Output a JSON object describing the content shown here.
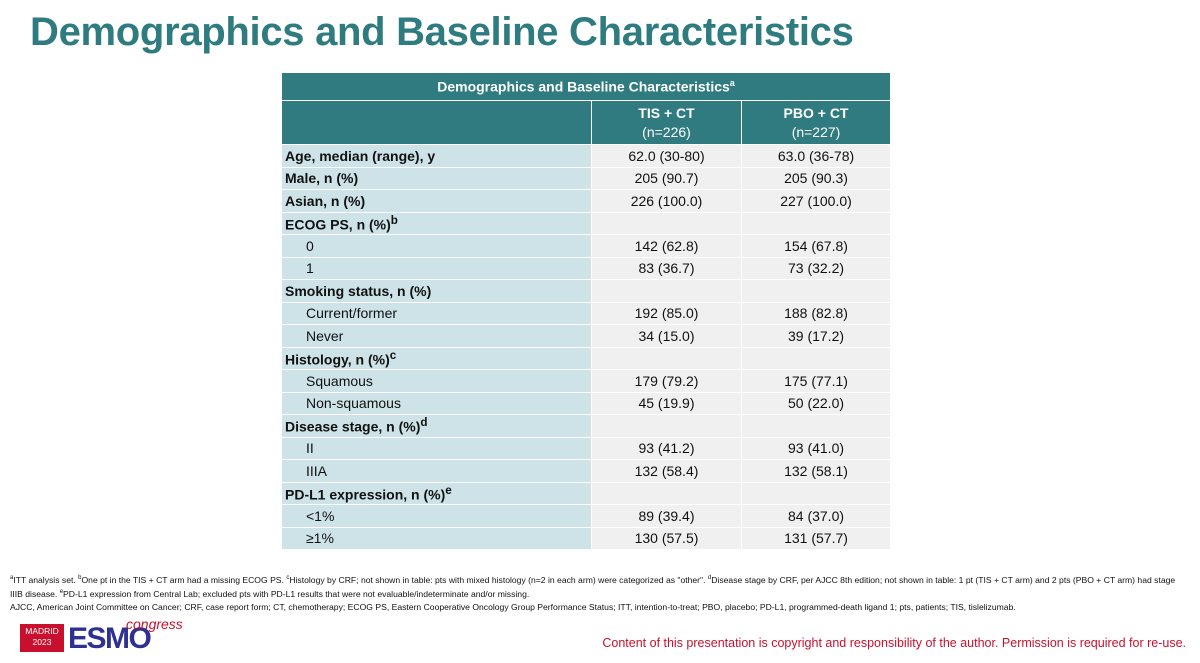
{
  "slide": {
    "title": "Demographics and Baseline Characteristics"
  },
  "table": {
    "title": "Demographics and Baseline Characteristics",
    "title_sup": "a",
    "columns": [
      {
        "name": "TIS + CT",
        "n": "(n=226)"
      },
      {
        "name": "PBO + CT",
        "n": "(n=227)"
      }
    ],
    "rows": [
      {
        "label": "Age, median (range), y",
        "sup": "",
        "bold": true,
        "v1": "62.0 (30-80)",
        "v2": "63.0 (36-78)"
      },
      {
        "label": "Male, n (%)",
        "sup": "",
        "bold": true,
        "v1": "205 (90.7)",
        "v2": "205 (90.3)"
      },
      {
        "label": "Asian, n (%)",
        "sup": "",
        "bold": true,
        "v1": "226 (100.0)",
        "v2": "227 (100.0)"
      },
      {
        "label": "ECOG PS, n (%)",
        "sup": "b",
        "bold": true,
        "v1": "",
        "v2": ""
      },
      {
        "label": "0",
        "sup": "",
        "bold": false,
        "v1": "142 (62.8)",
        "v2": "154 (67.8)"
      },
      {
        "label": "1",
        "sup": "",
        "bold": false,
        "v1": "83 (36.7)",
        "v2": "73 (32.2)"
      },
      {
        "label": "Smoking status, n (%)",
        "sup": "",
        "bold": true,
        "v1": "",
        "v2": ""
      },
      {
        "label": "Current/former",
        "sup": "",
        "bold": false,
        "v1": "192 (85.0)",
        "v2": "188 (82.8)"
      },
      {
        "label": "Never",
        "sup": "",
        "bold": false,
        "v1": "34 (15.0)",
        "v2": "39 (17.2)"
      },
      {
        "label": "Histology, n (%)",
        "sup": "c",
        "bold": true,
        "v1": "",
        "v2": ""
      },
      {
        "label": "Squamous",
        "sup": "",
        "bold": false,
        "v1": "179 (79.2)",
        "v2": "175 (77.1)"
      },
      {
        "label": "Non-squamous",
        "sup": "",
        "bold": false,
        "v1": "45 (19.9)",
        "v2": "50 (22.0)"
      },
      {
        "label": "Disease stage, n (%)",
        "sup": "d",
        "bold": true,
        "v1": "",
        "v2": ""
      },
      {
        "label": "II",
        "sup": "",
        "bold": false,
        "v1": "93 (41.2)",
        "v2": "93 (41.0)"
      },
      {
        "label": "IIIA",
        "sup": "",
        "bold": false,
        "v1": "132 (58.4)",
        "v2": "132 (58.1)"
      },
      {
        "label": "PD-L1 expression, n (%)",
        "sup": "e",
        "bold": true,
        "v1": "",
        "v2": ""
      },
      {
        "label": "<1%",
        "sup": "",
        "bold": false,
        "v1": "89 (39.4)",
        "v2": "84 (37.0)"
      },
      {
        "label": "≥1%",
        "sup": "",
        "bold": false,
        "v1": "130 (57.5)",
        "v2": "131 (57.7)"
      }
    ]
  },
  "footnotes": {
    "line1_sup": "a",
    "line1": "ITT analysis set. ",
    "line1b_sup": "b",
    "line1b": "One pt in the TIS + CT arm had a missing ECOG PS. ",
    "line1c_sup": "c",
    "line1c": "Histology by CRF; not shown in table: pts with mixed histology (n=2 in each arm) were categorized as \"other\". ",
    "line1d_sup": "d",
    "line1d": "Disease stage by CRF, per AJCC 8th edition; not shown in table: 1 pt (TIS + CT arm) and 2 pts (PBO + CT arm) had stage IIIB disease. ",
    "line1e_sup": "e",
    "line1e": "PD-L1 expression from Central Lab; excluded pts with PD-L1 results that were not evaluable/indeterminate and/or missing.",
    "abbreviations": "AJCC, American Joint Committee on Cancer; CRF, case report form; CT, chemotherapy; ECOG PS, Eastern Cooperative Oncology Group Performance Status; ITT, intention-to-treat; PBO, placebo; PD-L1, programmed-death ligand 1; pts, patients; TIS, tislelizumab."
  },
  "logo": {
    "city": "MADRID",
    "year": "2023",
    "brand": "ESMO",
    "suffix": "congress"
  },
  "copyright": "Content of this presentation is copyright and responsibility of the author. Permission is required for re-use.",
  "colors": {
    "title": "#2e7b80",
    "header_bg": "#2f7b7f",
    "label_bg": "#cde3e7",
    "value_bg": "#f0f0f0",
    "copyright": "#c8102e"
  }
}
